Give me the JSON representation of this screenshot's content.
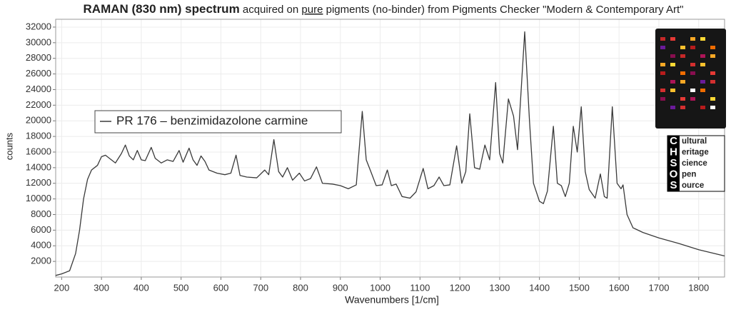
{
  "chart_data": {
    "type": "line",
    "title": {
      "bold": "RAMAN (830 nm) spectrum",
      "part1": " acquired on ",
      "underlined": "pure",
      "part2": " pigments (no-binder) from Pigments Checker \"Modern & Contemporary Art\""
    },
    "xlabel": "Wavenumbers [1/cm]",
    "ylabel": "counts",
    "xlim": [
      185,
      1865
    ],
    "ylim": [
      0,
      33000
    ],
    "xticks": [
      200,
      300,
      400,
      500,
      600,
      700,
      800,
      900,
      1000,
      1100,
      1200,
      1300,
      1400,
      1500,
      1600,
      1700,
      1800
    ],
    "yticks": [
      2000,
      4000,
      6000,
      8000,
      10000,
      12000,
      14000,
      16000,
      18000,
      20000,
      22000,
      24000,
      26000,
      28000,
      30000,
      32000
    ],
    "grid": true,
    "x": [
      185,
      200,
      220,
      235,
      245,
      255,
      265,
      275,
      290,
      300,
      310,
      320,
      335,
      350,
      360,
      370,
      380,
      390,
      400,
      410,
      425,
      435,
      450,
      465,
      480,
      495,
      505,
      520,
      530,
      540,
      550,
      560,
      570,
      590,
      610,
      625,
      638,
      648,
      665,
      690,
      710,
      720,
      733,
      745,
      755,
      767,
      780,
      797,
      810,
      825,
      840,
      855,
      880,
      900,
      920,
      940,
      955,
      965,
      975,
      990,
      1005,
      1018,
      1028,
      1040,
      1055,
      1075,
      1090,
      1108,
      1120,
      1135,
      1148,
      1160,
      1175,
      1192,
      1205,
      1215,
      1225,
      1237,
      1250,
      1263,
      1275,
      1290,
      1300,
      1308,
      1322,
      1335,
      1345,
      1363,
      1375,
      1385,
      1400,
      1410,
      1420,
      1435,
      1445,
      1455,
      1465,
      1475,
      1485,
      1495,
      1505,
      1515,
      1525,
      1540,
      1553,
      1563,
      1570,
      1583,
      1595,
      1605,
      1610,
      1620,
      1635,
      1660,
      1700,
      1750,
      1800,
      1865
    ],
    "series": [
      {
        "name": "PR 176 – benzimidazolone carmine",
        "color": "#3a3a3a",
        "values": [
          200,
          400,
          800,
          3000,
          6000,
          10000,
          12500,
          13700,
          14300,
          15400,
          15600,
          15200,
          14600,
          15800,
          16900,
          15500,
          15000,
          16200,
          15000,
          14900,
          16600,
          15200,
          14600,
          15000,
          14800,
          16200,
          14700,
          16500,
          15000,
          14300,
          15500,
          14800,
          13700,
          13300,
          13100,
          13300,
          15600,
          13000,
          12800,
          12700,
          13700,
          13100,
          17600,
          13500,
          12800,
          14000,
          12400,
          13300,
          12300,
          12600,
          14100,
          12000,
          11900,
          11700,
          11300,
          11800,
          21200,
          15000,
          13700,
          11700,
          11800,
          13700,
          11700,
          11900,
          10300,
          10100,
          10900,
          13900,
          11300,
          11700,
          12800,
          11700,
          11800,
          16800,
          12000,
          13500,
          20900,
          14000,
          13800,
          16900,
          15000,
          24900,
          15800,
          14600,
          22800,
          20600,
          16300,
          31400,
          20000,
          12000,
          9700,
          9400,
          11000,
          19300,
          12000,
          11700,
          10300,
          12000,
          19300,
          16000,
          21800,
          13500,
          11200,
          10100,
          13200,
          10300,
          10100,
          21800,
          12000,
          11300,
          11800,
          8000,
          6300,
          5700,
          5000,
          4300,
          3500,
          2700
        ]
      }
    ]
  },
  "logo": {
    "letters": [
      "C",
      "H",
      "S",
      "O",
      "S"
    ],
    "rest": [
      "ultural",
      "eritage",
      "cience",
      "pen",
      "ource"
    ]
  }
}
